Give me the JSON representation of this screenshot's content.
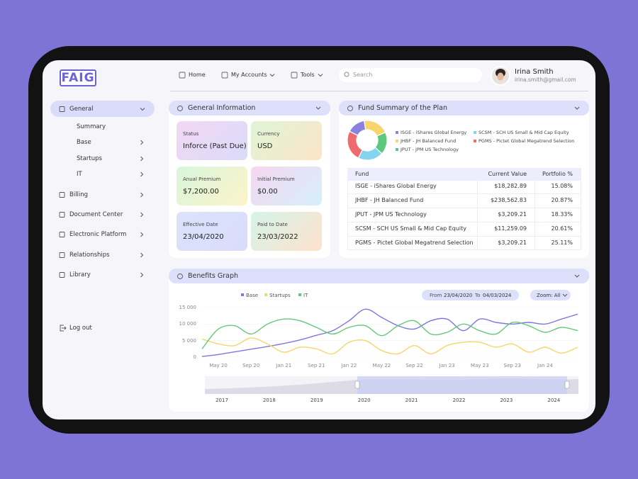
{
  "header": {
    "logo": "FAIG",
    "nav": [
      "Home",
      "My Accounts",
      "Tools"
    ],
    "search_placeholder": "Search",
    "user": {
      "name": "Irina Smith",
      "email": "irina.smith@gmail.com"
    }
  },
  "sidebar": {
    "items": [
      {
        "label": "General",
        "children": [
          "Summary",
          "Base",
          "Startups",
          "IT"
        ]
      },
      {
        "label": "Billing"
      },
      {
        "label": "Document Center"
      },
      {
        "label": "Electronic Platform"
      },
      {
        "label": "Relationships"
      },
      {
        "label": "Library"
      }
    ],
    "logout": "Log out"
  },
  "general_information": {
    "title": "General Information",
    "fields": [
      {
        "label": "Status",
        "value": "Inforce (Past Due)"
      },
      {
        "label": "Currency",
        "value": "USD"
      },
      {
        "label": "Anual Premium",
        "value": "$7,200.00"
      },
      {
        "label": "Initial Premium",
        "value": "$0.00"
      },
      {
        "label": "Effective Date",
        "value": "23/04/2020"
      },
      {
        "label": "Paid to Date",
        "value": "23/03/2022"
      }
    ]
  },
  "fund_summary": {
    "title": "Fund Summary of the Plan",
    "table": {
      "columns": [
        "Fund",
        "Current Value",
        "Portfolio %"
      ],
      "rows": [
        [
          "ISGE - iShares Global Energy",
          "$18,282.89",
          "15.08%"
        ],
        [
          "JHBF - JH Balanced Fund",
          "$238,562.83",
          "20.87%"
        ],
        [
          "JPUT - JPM US Technology",
          "$3,209.21",
          "18.33%"
        ],
        [
          "SCSM - SCH US Small & Mid Cap Equity",
          "$11,259.09",
          "20.61%"
        ],
        [
          "PGMS - Pictet Global Megatrend Selection",
          "$3,209.21",
          "25.11%"
        ]
      ]
    }
  },
  "benefits": {
    "title": "Benefits Graph",
    "range": {
      "from_label": "From",
      "from": "23/04/2020",
      "to_label": "To",
      "to": "04/03/2024"
    },
    "zoom": "Zoom: All",
    "navigator_years": [
      "2017",
      "2018",
      "2019",
      "2020",
      "2021",
      "2022",
      "2023",
      "2024"
    ]
  },
  "chart_data": [
    {
      "type": "pie",
      "categories": [
        "ISGE - iShares Global Energy",
        "JHBF - JH Balanced Fund",
        "JPUT - JPM US Technology",
        "SCSM - SCH US Small & Mid Cap Equity",
        "PGMS - Pictet Global Megatrend Selection"
      ],
      "values": [
        15.08,
        20.87,
        18.33,
        20.61,
        25.11
      ],
      "colors": [
        "#8a80e0",
        "#f6d56a",
        "#5cc87b",
        "#86d3f0",
        "#ee6a6d"
      ]
    },
    {
      "type": "line",
      "categories": [
        null,
        "May 20",
        null,
        "Sep 20",
        null,
        "Jan 21",
        null,
        "Sep 21",
        null,
        "Jan 22",
        null,
        "May 22",
        null,
        "Sep 22",
        null,
        "Jan 23",
        null,
        "May 23",
        null,
        "Sep 23",
        null,
        "Jan 24",
        null,
        null
      ],
      "series": [
        {
          "name": "Base",
          "color": "#7f77dd",
          "values": [
            200,
            800,
            1600,
            2400,
            3200,
            4100,
            5200,
            6600,
            8000,
            11000,
            14500,
            12000,
            9500,
            8500,
            11000,
            11500,
            8000,
            11500,
            10500,
            10000,
            10500,
            10000,
            11500,
            13000
          ]
        },
        {
          "name": "Startups",
          "color": "#f5d66b",
          "values": [
            5500,
            4000,
            3500,
            5800,
            4000,
            1500,
            3000,
            2500,
            1000,
            4500,
            5000,
            2000,
            1000,
            3500,
            1000,
            3500,
            4500,
            4500,
            3000,
            4000,
            1500,
            3000,
            1200,
            3000
          ]
        },
        {
          "name": "IT",
          "color": "#63c878",
          "values": [
            2500,
            8500,
            9500,
            7000,
            10000,
            11500,
            11000,
            9000,
            7000,
            9000,
            9500,
            6500,
            9500,
            11000,
            7000,
            7500,
            10000,
            8000,
            7000,
            10500,
            9500,
            7500,
            9000,
            8000
          ]
        }
      ],
      "ylim": [
        0,
        15000
      ],
      "yticks": [
        0,
        {
          "value": 5000,
          "label": "5 000"
        },
        {
          "value": 10000,
          "label": "10 000"
        },
        {
          "value": 15000,
          "label": "15 000"
        }
      ]
    }
  ]
}
